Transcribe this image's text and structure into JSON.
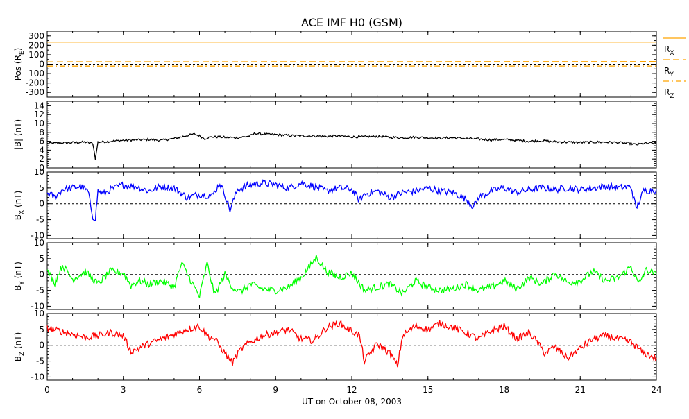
{
  "chart_data": {
    "type": "line",
    "title": "ACE IMF H0 (GSM)",
    "xlabel": "UT on October 08, 2003",
    "xlim": [
      0,
      24
    ],
    "x_ticks": [
      "0",
      "3",
      "6",
      "9",
      "12",
      "15",
      "18",
      "21",
      "24"
    ],
    "panels": [
      {
        "ylabel_main": "Pos (R",
        "ylabel_sub": "E",
        "ylabel_tail": ")",
        "ylim": [
          -350,
          350
        ],
        "y_ticks": [
          "300",
          "200",
          "100",
          "0",
          "-100",
          "-200",
          "-300"
        ],
        "y_tick_values": [
          300,
          200,
          100,
          0,
          -100,
          -200,
          -300
        ],
        "zero_line": true,
        "series": [
          {
            "name": "R",
            "sub": "X",
            "color": "#ffa500",
            "style": "solid",
            "x": [
              0,
              24
            ],
            "values": [
              234,
              234
            ]
          },
          {
            "name": "R",
            "sub": "Y",
            "color": "#ffa500",
            "style": "dash",
            "x": [
              0,
              24
            ],
            "values": [
              25,
              28
            ]
          },
          {
            "name": "R",
            "sub": "Z",
            "color": "#ffa500",
            "style": "dashdot",
            "x": [
              0,
              24
            ],
            "values": [
              -20,
              -19
            ]
          }
        ]
      },
      {
        "ylabel_main": "|B| (nT)",
        "ylabel_sub": "",
        "ylabel_tail": "",
        "ylim": [
          0,
          15
        ],
        "y_ticks": [
          "14",
          "12",
          "10",
          "8",
          "6",
          "4",
          "2",
          "0"
        ],
        "y_tick_values": [
          14,
          12,
          10,
          8,
          6,
          4,
          2,
          0
        ],
        "zero_line": false,
        "series": [
          {
            "name": "|B|",
            "color": "#000000",
            "x": [
              0,
              0.5,
              1,
              1.5,
              1.8,
              1.9,
              2,
              2.5,
              3,
              3.5,
              4,
              4.5,
              5,
              5.5,
              5.8,
              6,
              6.2,
              6.5,
              7,
              7.5,
              8,
              8.2,
              8.5,
              9,
              9.5,
              10,
              10.5,
              11,
              11.5,
              12,
              12.5,
              13,
              13.5,
              14,
              14.5,
              15,
              15.5,
              16,
              16.5,
              17,
              17.5,
              18,
              18.5,
              19,
              19.5,
              20,
              20.5,
              21,
              21.5,
              22,
              22.5,
              23,
              23.2,
              23.5,
              24
            ],
            "values": [
              5.5,
              5.6,
              5.7,
              5.8,
              5.5,
              2.0,
              5.8,
              6.0,
              6.2,
              6.3,
              6.4,
              6.2,
              6.6,
              7.3,
              7.6,
              7.2,
              6.6,
              7.0,
              6.9,
              6.8,
              7.2,
              7.8,
              7.6,
              7.5,
              7.3,
              7.2,
              7.2,
              7.1,
              7.2,
              7.0,
              7.0,
              7.1,
              6.9,
              6.8,
              6.9,
              6.8,
              6.7,
              6.8,
              6.6,
              6.5,
              6.3,
              6.4,
              6.2,
              6.0,
              6.1,
              5.9,
              5.8,
              5.7,
              5.8,
              5.8,
              5.7,
              5.5,
              5.2,
              5.5,
              5.6
            ]
          }
        ]
      },
      {
        "ylabel_main": "B",
        "ylabel_sub": "X",
        "ylabel_tail": " (nT)",
        "ylim": [
          -11,
          10
        ],
        "y_ticks": [
          "10",
          "5",
          "0",
          "-5",
          "-10"
        ],
        "y_tick_values": [
          10,
          5,
          0,
          -5,
          -10
        ],
        "zero_line": true,
        "series": [
          {
            "name": "Bx",
            "color": "#0000ff",
            "x": [
              0,
              0.3,
              0.6,
              1,
              1.3,
              1.6,
              1.8,
              1.9,
              2,
              2.2,
              2.5,
              3,
              3.5,
              4,
              4.5,
              5,
              5.5,
              6,
              6.5,
              6.8,
              7,
              7.2,
              7.5,
              8,
              8.5,
              9,
              9.5,
              10,
              10.5,
              11,
              11.5,
              12,
              12.3,
              12.5,
              13,
              13.5,
              14,
              14.5,
              15,
              15.5,
              16,
              16.5,
              16.8,
              17,
              17.5,
              18,
              18.5,
              19,
              19.5,
              20,
              20.5,
              21,
              21.5,
              22,
              22.5,
              23,
              23.2,
              23.5,
              24
            ],
            "values": [
              3.5,
              2.0,
              4.5,
              5.0,
              5.5,
              4.0,
              -4.0,
              -4.5,
              4.0,
              3.0,
              4.5,
              6.0,
              5.5,
              4.0,
              5.5,
              5.0,
              2.0,
              3.0,
              2.5,
              6.5,
              3.0,
              -2.0,
              4.5,
              6.0,
              6.5,
              6.0,
              5.0,
              6.5,
              5.5,
              4.0,
              5.0,
              4.5,
              1.0,
              3.0,
              4.0,
              2.0,
              3.5,
              4.0,
              5.0,
              4.0,
              3.5,
              1.5,
              -1.0,
              2.0,
              4.0,
              5.0,
              3.5,
              4.5,
              5.0,
              4.5,
              5.0,
              4.5,
              5.0,
              5.5,
              5.0,
              5.5,
              -1.5,
              4.0,
              4.5
            ]
          }
        ]
      },
      {
        "ylabel_main": "B",
        "ylabel_sub": "Y",
        "ylabel_tail": " (nT)",
        "ylim": [
          -11,
          10
        ],
        "y_ticks": [
          "10",
          "5",
          "0",
          "-5",
          "-10"
        ],
        "y_tick_values": [
          10,
          5,
          0,
          -5,
          -10
        ],
        "zero_line": true,
        "series": [
          {
            "name": "By",
            "color": "#00ff00",
            "x": [
              0,
              0.3,
              0.6,
              1,
              1.5,
              2,
              2.5,
              3,
              3.3,
              3.6,
              4,
              4.5,
              5,
              5.3,
              5.6,
              6,
              6.3,
              6.6,
              7,
              7.3,
              7.6,
              8,
              8.5,
              9,
              9.5,
              10,
              10.3,
              10.6,
              11,
              11.5,
              12,
              12.5,
              13,
              13.5,
              14,
              14.5,
              15,
              15.5,
              16,
              16.5,
              17,
              17.5,
              18,
              18.5,
              19,
              19.5,
              20,
              20.5,
              21,
              21.5,
              22,
              22.5,
              23,
              23.3,
              23.6,
              24
            ],
            "values": [
              1.0,
              -2.5,
              3.0,
              -1.5,
              1.0,
              -3.0,
              1.0,
              0.5,
              -3.5,
              -2.0,
              -3.0,
              -2.0,
              -4.0,
              3.5,
              -1.0,
              -7.0,
              3.5,
              -6.5,
              0.0,
              -4.0,
              -5.5,
              -3.0,
              -4.5,
              -5.0,
              -4.0,
              -1.0,
              2.0,
              5.5,
              1.0,
              -1.0,
              0.5,
              -5.0,
              -4.0,
              -3.0,
              -6.0,
              -2.0,
              -4.0,
              -5.0,
              -4.5,
              -3.0,
              -5.0,
              -4.0,
              -2.0,
              -4.5,
              -1.0,
              -3.0,
              0.5,
              -2.5,
              -2.0,
              1.0,
              -2.0,
              -1.0,
              2.5,
              -3.0,
              1.5,
              0.0
            ]
          }
        ]
      },
      {
        "ylabel_main": "B",
        "ylabel_sub": "Z",
        "ylabel_tail": " (nT)",
        "ylim": [
          -11,
          10
        ],
        "y_ticks": [
          "10",
          "5",
          "0",
          "-5",
          "-10"
        ],
        "y_tick_values": [
          10,
          5,
          0,
          -5,
          -10
        ],
        "zero_line": true,
        "series": [
          {
            "name": "Bz",
            "color": "#ff0000",
            "x": [
              0,
              0.5,
              1,
              1.5,
              2,
              2.5,
              3,
              3.3,
              3.6,
              4,
              4.5,
              5,
              5.5,
              6,
              6.3,
              6.6,
              7,
              7.3,
              7.6,
              8,
              8.5,
              9,
              9.5,
              10,
              10.5,
              11,
              11.5,
              12,
              12.3,
              12.5,
              13,
              13.5,
              13.8,
              14,
              14.5,
              15,
              15.5,
              16,
              16.5,
              17,
              17.5,
              18,
              18.5,
              19,
              19.3,
              19.6,
              20,
              20.5,
              21,
              21.5,
              22,
              22.5,
              23,
              23.5,
              24
            ],
            "values": [
              5.5,
              4.5,
              3.5,
              2.5,
              3.0,
              4.0,
              3.0,
              -2.0,
              -1.0,
              0.5,
              2.0,
              3.5,
              5.0,
              6.0,
              3.0,
              2.0,
              -2.5,
              -5.5,
              -1.5,
              1.0,
              3.0,
              4.0,
              5.0,
              2.0,
              1.5,
              5.5,
              7.0,
              4.5,
              3.0,
              -5.0,
              0.5,
              -2.5,
              -6.5,
              3.0,
              6.0,
              5.0,
              7.0,
              5.5,
              4.0,
              2.0,
              4.5,
              6.0,
              2.0,
              4.0,
              1.0,
              -2.5,
              -0.5,
              -4.0,
              -1.0,
              2.0,
              3.0,
              2.0,
              1.0,
              -2.5,
              -4.0
            ]
          }
        ]
      }
    ],
    "legend": [
      {
        "main": "R",
        "sub": "X",
        "style": "solid"
      },
      {
        "main": "R",
        "sub": "Y",
        "style": "dash"
      },
      {
        "main": "R",
        "sub": "Z",
        "style": "dashdot"
      }
    ]
  }
}
